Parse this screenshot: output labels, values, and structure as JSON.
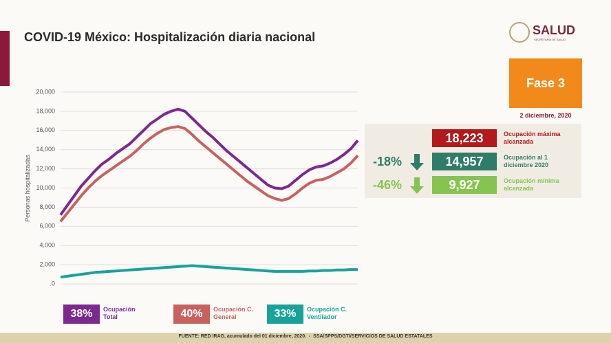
{
  "header": {
    "title": "COVID-19 México: Hospitalización diaria nacional",
    "logo": "SALUD",
    "logo_sub": "SECRETARÍA DE SALUD",
    "phase": "Fase 3",
    "date": "2 diciembre, 2020"
  },
  "stats": [
    {
      "value": "18,223",
      "label": "Ocupación máxima alcanzada"
    },
    {
      "change": "-18%",
      "value": "14,957",
      "label": "Ocupación al 1 diciembre 2020"
    },
    {
      "change": "-46%",
      "value": "9,927",
      "label": "Ocupación mínima alcanzada"
    }
  ],
  "chart_data": {
    "type": "line",
    "ylabel": "Personas hospitalizadas",
    "ylim": [
      0,
      20000
    ],
    "yticks": [
      {
        "value": 0,
        "label": ".0"
      },
      {
        "value": 2000,
        "label": "2,000"
      },
      {
        "value": 4000,
        "label": "4,000"
      },
      {
        "value": 6000,
        "label": "6,000"
      },
      {
        "value": 8000,
        "label": "8,000"
      },
      {
        "value": 10000,
        "label": "10,000"
      },
      {
        "value": 12000,
        "label": "12,000"
      },
      {
        "value": 14000,
        "label": "14,000"
      },
      {
        "value": 16000,
        "label": "16,000"
      },
      {
        "value": 18000,
        "label": "18,000"
      },
      {
        "value": 20000,
        "label": "20,000"
      }
    ],
    "grid": true,
    "series": [
      {
        "name": "Ocupación Total",
        "occupancy": "38%",
        "color": "#7b2a90",
        "values": [
          7200,
          8200,
          9200,
          10200,
          11000,
          11800,
          12500,
          13000,
          13600,
          14100,
          14600,
          15300,
          16000,
          16700,
          17200,
          17700,
          18000,
          18223,
          18000,
          17300,
          16600,
          15900,
          15300,
          14600,
          13900,
          13300,
          12700,
          12100,
          11500,
          10900,
          10300,
          10000,
          9927,
          10200,
          10800,
          11400,
          11900,
          12200,
          12300,
          12600,
          13000,
          13500,
          14100,
          14957
        ]
      },
      {
        "name": "Ocupación C. General",
        "occupancy": "40%",
        "color": "#c8625f",
        "values": [
          6500,
          7400,
          8300,
          9200,
          10000,
          10700,
          11300,
          11800,
          12300,
          12800,
          13300,
          13900,
          14600,
          15200,
          15700,
          16100,
          16300,
          16400,
          16200,
          15600,
          14900,
          14300,
          13700,
          13100,
          12500,
          11900,
          11300,
          10700,
          10200,
          9700,
          9200,
          8900,
          8700,
          8900,
          9400,
          10000,
          10500,
          10800,
          10900,
          11200,
          11600,
          12000,
          12600,
          13400
        ]
      },
      {
        "name": "Ocupación C. Ventilador",
        "occupancy": "33%",
        "color": "#17a39a",
        "values": [
          700,
          800,
          900,
          1000,
          1100,
          1200,
          1250,
          1300,
          1350,
          1400,
          1450,
          1500,
          1550,
          1600,
          1650,
          1700,
          1750,
          1800,
          1850,
          1900,
          1850,
          1800,
          1750,
          1700,
          1650,
          1600,
          1550,
          1500,
          1450,
          1400,
          1350,
          1300,
          1300,
          1300,
          1300,
          1300,
          1350,
          1350,
          1400,
          1400,
          1450,
          1450,
          1500,
          1500
        ]
      }
    ]
  },
  "footer": "FUENTE: RED IRAG, acumulado del 01 diciembre, 2020.  -  SSA/SPPS/DGTI/SERVICIOS DE SALUD ESTATALES"
}
